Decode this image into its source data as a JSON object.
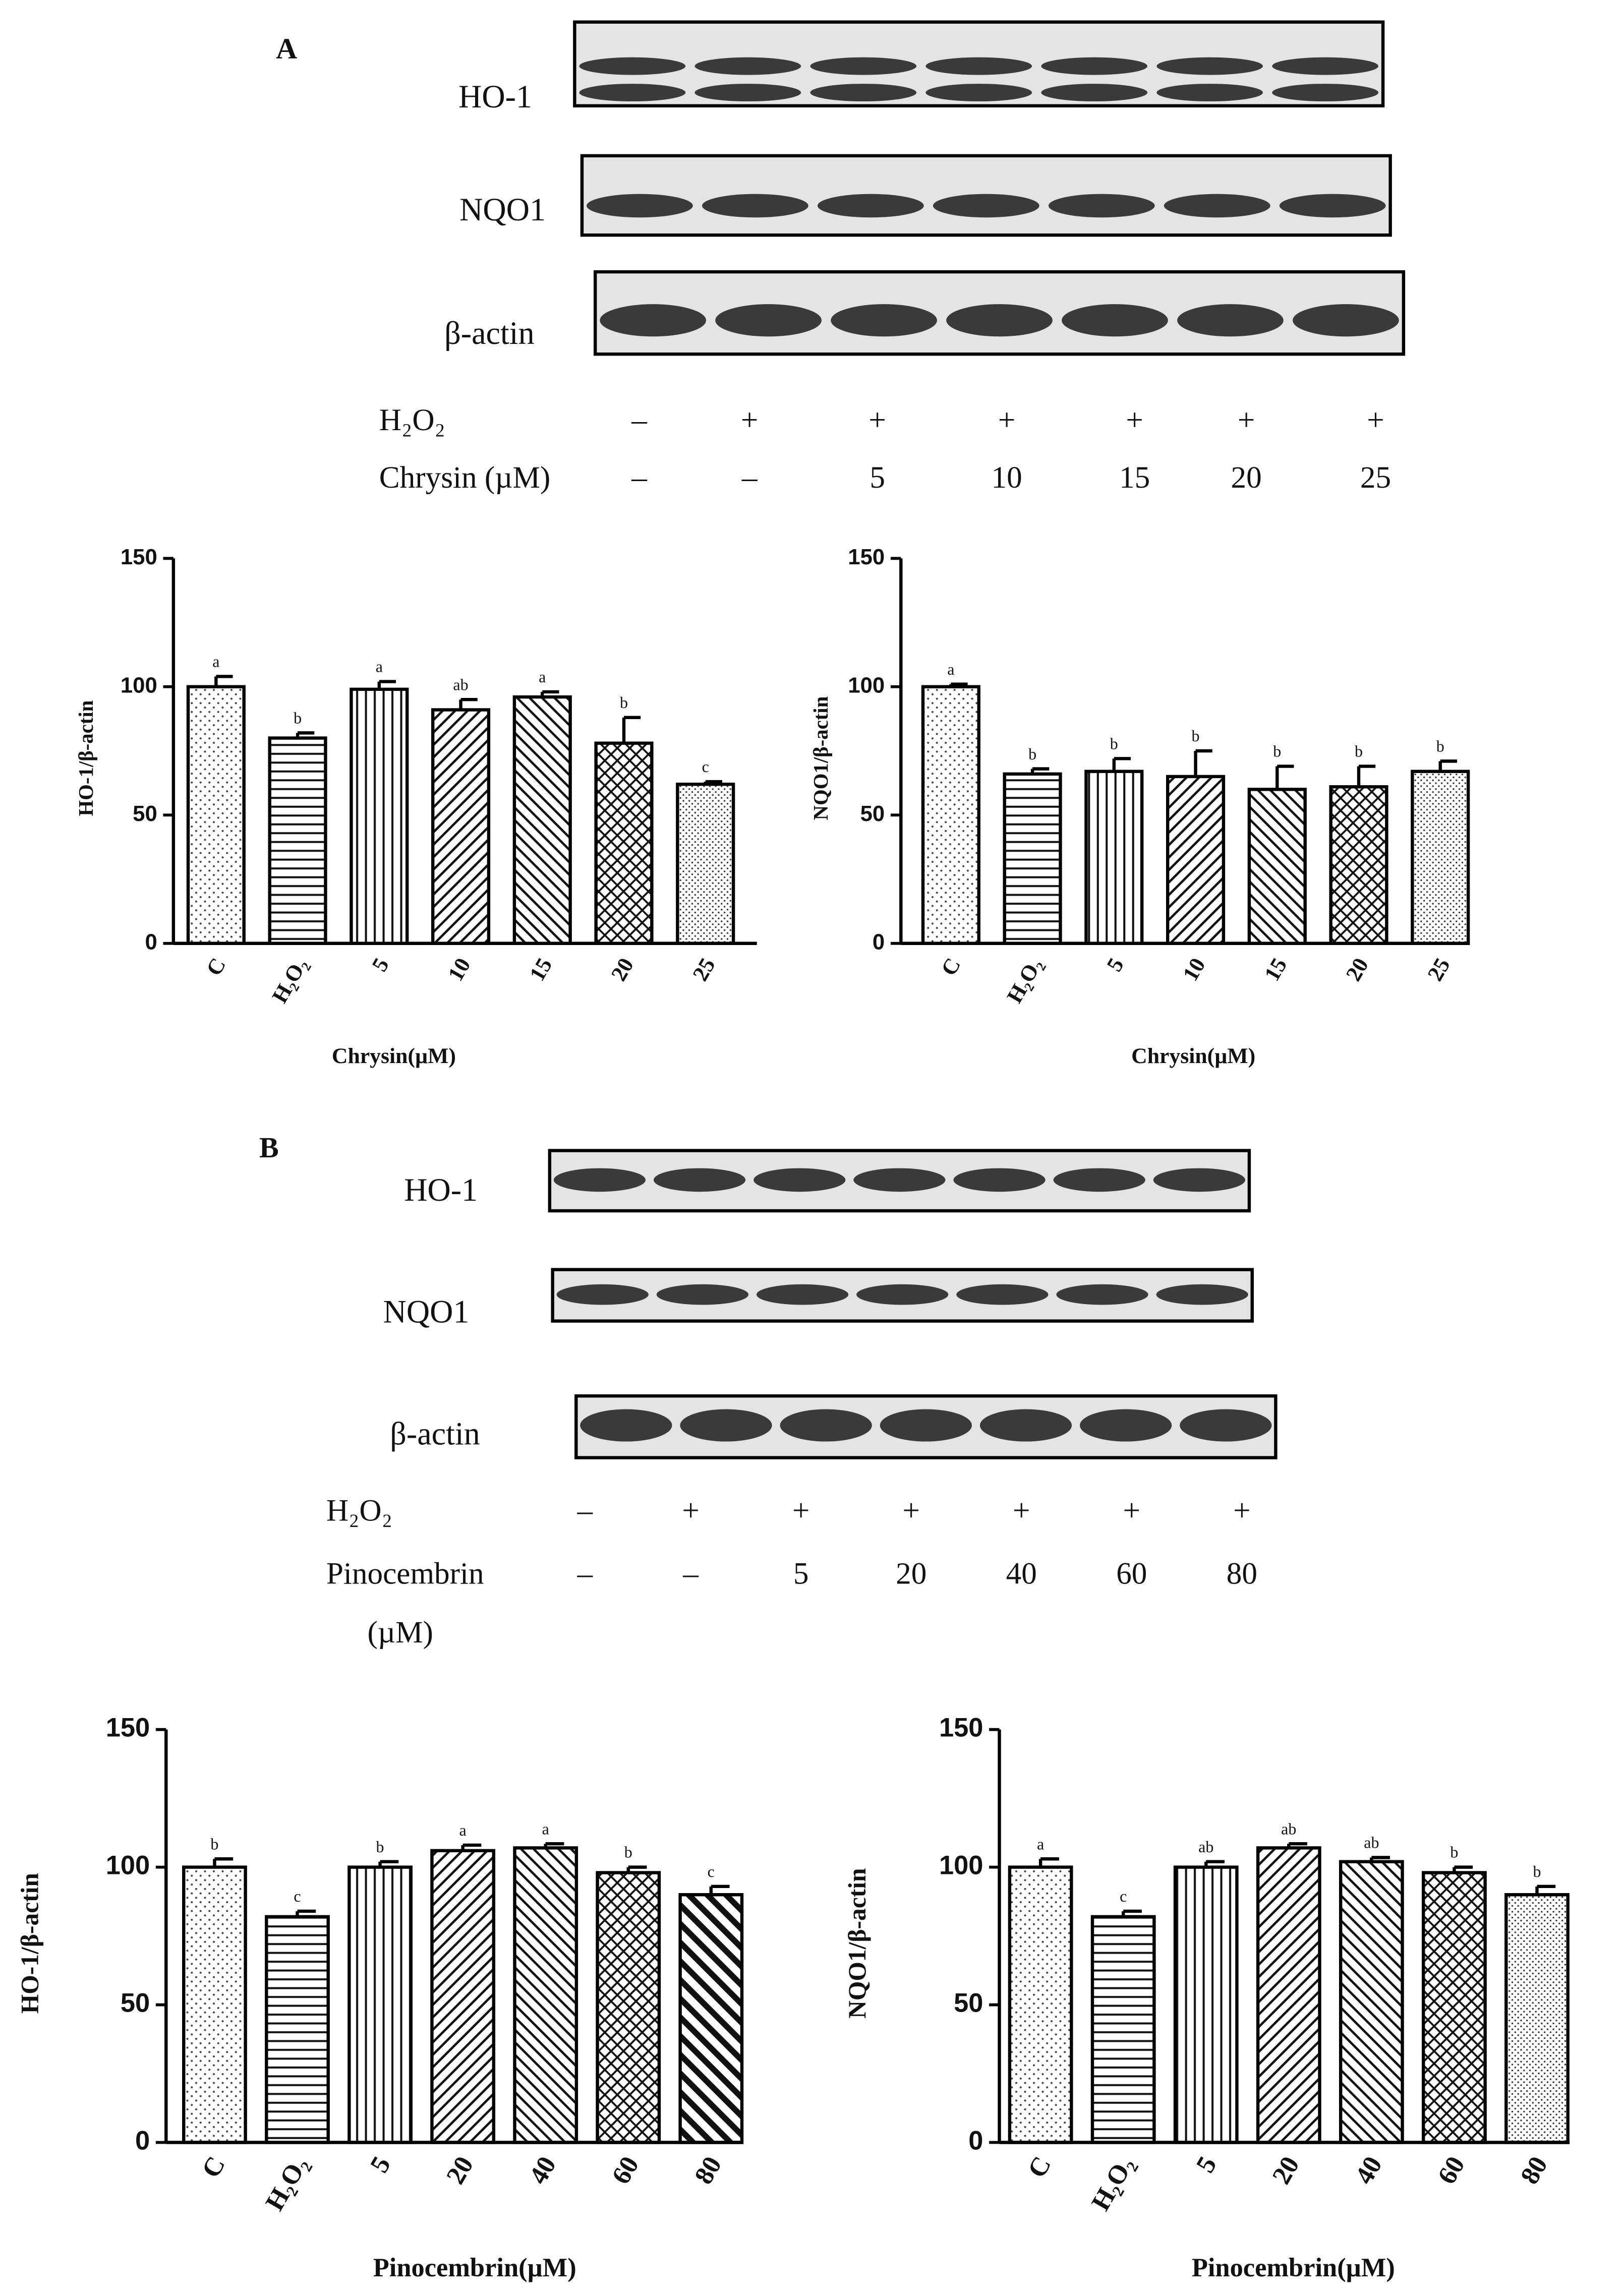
{
  "panels": [
    {
      "label": "A",
      "blots": [
        {
          "label": "HO-1"
        },
        {
          "label": "NQO1"
        },
        {
          "label": "β-actin"
        }
      ],
      "treatments": [
        {
          "label": "H₂O₂",
          "values": [
            "–",
            "+",
            "+",
            "+",
            "+",
            "+",
            "+"
          ]
        },
        {
          "label": "Chrysin (µM)",
          "values": [
            "–",
            "–",
            "5",
            "10",
            "15",
            "20",
            "25"
          ]
        }
      ]
    },
    {
      "label": "B",
      "blots": [
        {
          "label": "HO-1"
        },
        {
          "label": "NQO1"
        },
        {
          "label": "β-actin"
        }
      ],
      "treatments": [
        {
          "label": "H₂O₂",
          "values": [
            "–",
            "+",
            "+",
            "+",
            "+",
            "+",
            "+"
          ]
        },
        {
          "label": "Pinocembrin",
          "label_unit": "(µM)",
          "values": [
            "–",
            "–",
            "5",
            "20",
            "40",
            "60",
            "80"
          ]
        }
      ]
    }
  ],
  "chart_data": [
    {
      "type": "bar",
      "y_label": "HO-1/β-actin",
      "x_label": "Chrysin(µM)",
      "categories": [
        "C",
        "H₂O₂",
        "5",
        "10",
        "15",
        "20",
        "25"
      ],
      "values": [
        100,
        80,
        99,
        91,
        96,
        78,
        62
      ],
      "errors": [
        4,
        2,
        3,
        4,
        2,
        10,
        1
      ],
      "annotations": [
        "a",
        "b",
        "a",
        "ab",
        "a",
        "b",
        "c"
      ],
      "patterns": [
        "dots",
        "hlines",
        "vlines",
        "diag",
        "diag-rev",
        "cross",
        "fine-dots"
      ],
      "ylim": [
        0,
        150
      ],
      "yticks": [
        0,
        50,
        100,
        150
      ],
      "grid": false
    },
    {
      "type": "bar",
      "y_label": "NQO1/β-actin",
      "x_label": "Chrysin(µM)",
      "categories": [
        "C",
        "H₂O₂",
        "5",
        "10",
        "15",
        "20",
        "25"
      ],
      "values": [
        100,
        66,
        67,
        65,
        60,
        61,
        67
      ],
      "errors": [
        1,
        2,
        5,
        10,
        9,
        8,
        4
      ],
      "annotations": [
        "a",
        "b",
        "b",
        "b",
        "b",
        "b",
        "b"
      ],
      "patterns": [
        "dots",
        "hlines",
        "vlines",
        "diag",
        "diag-rev",
        "cross",
        "fine-dots"
      ],
      "ylim": [
        0,
        150
      ],
      "yticks": [
        0,
        50,
        100,
        150
      ],
      "grid": false
    },
    {
      "type": "bar",
      "y_label": "HO-1/β-actin",
      "x_label": "Pinocembrin(µM)",
      "categories": [
        "C",
        "H₂O₂",
        "5",
        "20",
        "40",
        "60",
        "80"
      ],
      "values": [
        100,
        82,
        100,
        106,
        107,
        98,
        90
      ],
      "errors": [
        3,
        2,
        2,
        2,
        1.5,
        2,
        3
      ],
      "annotations": [
        "b",
        "c",
        "b",
        "a",
        "a",
        "b",
        "c"
      ],
      "patterns": [
        "dots",
        "hlines",
        "vlines",
        "diag",
        "diag-rev",
        "cross",
        "thick-diag-rev"
      ],
      "ylim": [
        0,
        150
      ],
      "yticks": [
        0,
        50,
        100,
        150
      ],
      "grid": false
    },
    {
      "type": "bar",
      "y_label": "NQO1/β-actin",
      "x_label": "Pinocembrin(µM)",
      "categories": [
        "C",
        "H₂O₂",
        "5",
        "20",
        "40",
        "60",
        "80"
      ],
      "values": [
        100,
        82,
        100,
        107,
        102,
        98,
        90
      ],
      "errors": [
        3,
        2,
        2,
        1.5,
        1.5,
        2,
        3
      ],
      "annotations": [
        "a",
        "c",
        "ab",
        "ab",
        "ab",
        "b",
        "b"
      ],
      "patterns": [
        "dots",
        "hlines",
        "vlines",
        "diag",
        "diag-rev",
        "cross",
        "fine-dots"
      ],
      "ylim": [
        0,
        150
      ],
      "yticks": [
        0,
        50,
        100,
        150
      ],
      "grid": false
    }
  ]
}
